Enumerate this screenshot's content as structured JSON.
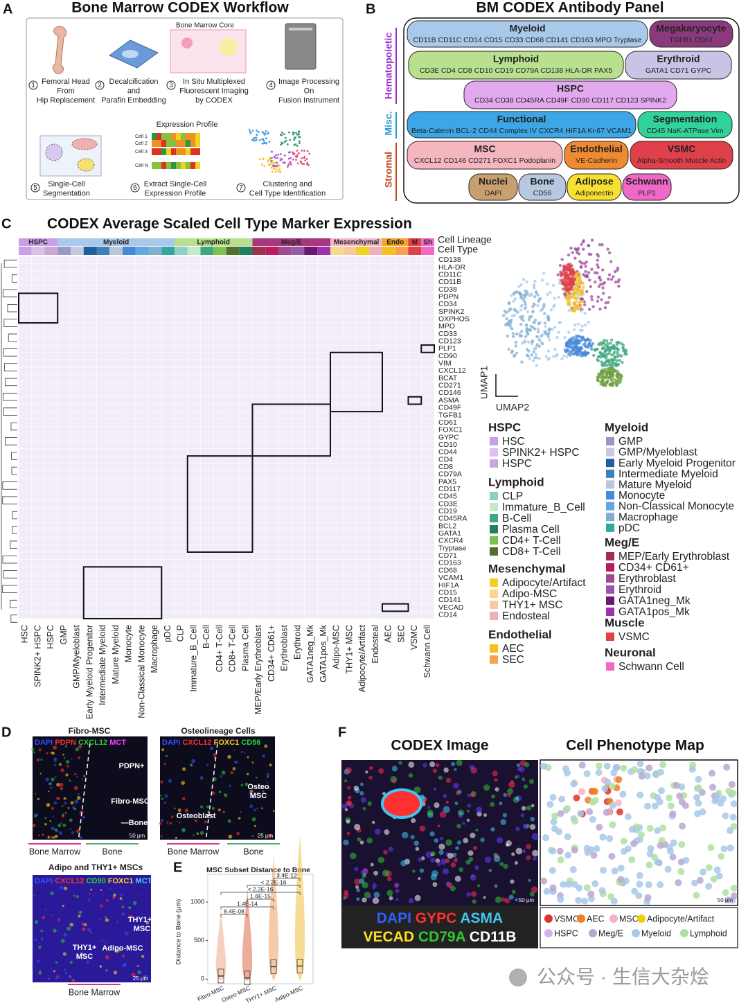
{
  "panel_a": {
    "letter": "A",
    "title": "Bone Marrow CODEX Workflow",
    "core_label": "Bone Marrow Core",
    "steps": [
      {
        "num": "1",
        "lines": [
          "Femoral Head",
          "From",
          "Hip Replacement"
        ]
      },
      {
        "num": "2",
        "lines": [
          "Decalcification",
          "and",
          "Parafin Embedding"
        ]
      },
      {
        "num": "3",
        "lines": [
          "In Situ Multiplexed",
          "Fluorescent Imaging",
          "by CODEX"
        ]
      },
      {
        "num": "4",
        "lines": [
          "Image Processing",
          "On",
          "Fusion Instrument"
        ]
      },
      {
        "num": "5",
        "lines": [
          "Single-Cell",
          "Segmentation"
        ]
      },
      {
        "num": "6",
        "lines": [
          "Extract Single-Cell",
          "Expression Profile"
        ]
      },
      {
        "num": "7",
        "lines": [
          "Clustering and",
          "Cell Type Identification"
        ]
      }
    ],
    "expression_profile": "Expression Profile",
    "cells": [
      "Cell 1",
      "Cell 2",
      "Cell 3",
      "Cell N"
    ]
  },
  "panel_b": {
    "letter": "B",
    "title": "BM CODEX Antibody Panel",
    "groups": [
      {
        "name": "Hematopoietic",
        "color": "#9b30c8"
      },
      {
        "name": "Misc.",
        "color": "#2a9ad8"
      },
      {
        "name": "Stromal",
        "color": "#c04a20"
      }
    ],
    "boxes": [
      {
        "name": "Myeloid",
        "markers": "CD11B CD11C CD14 CD15 CD33 CD68 CD141 CD163 MPO Tryptase",
        "color": "#a9c9ea"
      },
      {
        "name": "Megakaryocyte",
        "markers": "TGFB1 CD61",
        "color": "#8a3a7c"
      },
      {
        "name": "Lymphoid",
        "markers": "CD3E CD4 CD8 CD10 CD19 CD79A CD138 HLA-DR PAX5",
        "color": "#b8e08e"
      },
      {
        "name": "Erythroid",
        "markers": "GATA1 CD71 GYPC",
        "color": "#c9c3e6"
      },
      {
        "name": "HSPC",
        "markers": "CD34 CD38 CD45RA CD49F CD90 CD117 CD123 SPINK2",
        "color": "#e3a9ef"
      },
      {
        "name": "Functional",
        "markers": "Beta-Catenin BCL-2 CD44 Complex IV CXCR4 HIF1A Ki-67 VCAM1",
        "color": "#3da6e6"
      },
      {
        "name": "Segmentation",
        "markers": "CD45 NaK-ATPase Vim",
        "color": "#30d39a"
      },
      {
        "name": "MSC",
        "markers": "CXCL12 CD146 CD271 FOXC1 Podoplanin",
        "color": "#f6b6c0"
      },
      {
        "name": "Endothelial",
        "markers": "VE-Cadherin",
        "color": "#f08a30"
      },
      {
        "name": "VSMC",
        "markers": "Alpha-Smooth Muscle Actin",
        "color": "#e0404a"
      },
      {
        "name": "Nuclei",
        "markers": "DAPI",
        "color": "#c8a070"
      },
      {
        "name": "Bone",
        "markers": "CD56",
        "color": "#b8c8e0"
      },
      {
        "name": "Adipose",
        "markers": "Adiponectin",
        "color": "#f8e030"
      },
      {
        "name": "Schwann",
        "markers": "PLP1",
        "color": "#f068c8"
      }
    ]
  },
  "panel_c": {
    "letter": "C",
    "title": "CODEX Average Scaled Cell Type Marker Expression",
    "header_labels": [
      "Cell Lineage",
      "Cell Type"
    ],
    "lineages": [
      {
        "name": "HSPC",
        "color": "#c9a0e8"
      },
      {
        "name": "Myeloid",
        "color": "#a8c8ec"
      },
      {
        "name": "Lymphoid",
        "color": "#b8e08e"
      },
      {
        "name": "Meg/E",
        "color": "#a8387e"
      },
      {
        "name": "Mesenchymal",
        "color": "#f3b8c8"
      },
      {
        "name": "Endo",
        "color": "#f5a623"
      },
      {
        "name": "M",
        "color": "#e0404a"
      },
      {
        "name": "Sh",
        "color": "#f068c8"
      }
    ],
    "markers": [
      "CD138",
      "HLA-DR",
      "CD11C",
      "CD11B",
      "CD38",
      "PDPN",
      "CD34",
      "SPINK2",
      "OXPHOS",
      "MPO",
      "CD33",
      "CD123",
      "PLP1",
      "CD90",
      "VIM",
      "CXCL12",
      "BCAT",
      "CD271",
      "CD146",
      "ASMA",
      "CD49F",
      "TGFB1",
      "CD61",
      "FOXC1",
      "GYPC",
      "CD10",
      "CD44",
      "CD4",
      "CD8",
      "CD79A",
      "PAX5",
      "CD117",
      "CD45",
      "CD3E",
      "CD19",
      "CD45RA",
      "BCL2",
      "GATA1",
      "CXCR4",
      "Tryptase",
      "CD71",
      "CD163",
      "CD68",
      "VCAM1",
      "HIF1A",
      "CD15",
      "CD141",
      "VECAD",
      "CD14"
    ],
    "cell_types": [
      "HSC",
      "SPINK2+ HSPC",
      "HSPC",
      "GMP",
      "GMP/Myeloblast",
      "Early Myeloid Progenitor",
      "Intermediate Myeloid",
      "Mature Myeloid",
      "Monocyte",
      "Non-Classical Monocyte",
      "Macrophage",
      "pDC",
      "CLP",
      "Immature_B_Cell",
      "B-Cell",
      "CD4+ T-Cell",
      "CD8+ T-Cell",
      "Plasma Cell",
      "MEP/Early Erythroblast",
      "CD34+ CD61+",
      "Erythroblast",
      "Erythroid",
      "GATA1neg_Mk",
      "GATA1pos_Mk",
      "Adipo-MSC",
      "THY1+ MSC",
      "Adipocyte/Artifact",
      "Endosteal",
      "AEC",
      "SEC",
      "VSMC",
      "Schwann Cell"
    ],
    "umap_axes": [
      "UMAP1",
      "UMAP2"
    ],
    "legend": [
      {
        "title": "HSPC",
        "items": [
          {
            "name": "HSC",
            "color": "#c9a0e8"
          },
          {
            "name": "SPINK2+ HSPC",
            "color": "#dcc0ec"
          },
          {
            "name": "HSPC",
            "color": "#c8a8d8"
          }
        ]
      },
      {
        "title": "Myeloid",
        "items": [
          {
            "name": "GMP",
            "color": "#9898c8"
          },
          {
            "name": "GMP/Myeloblast",
            "color": "#c8c8e0"
          },
          {
            "name": "Early Myeloid Progenitor",
            "color": "#2060a0"
          },
          {
            "name": "Intermediate Myeloid",
            "color": "#4080b8"
          },
          {
            "name": "Mature Myeloid",
            "color": "#b8c8d8"
          },
          {
            "name": "Monocyte",
            "color": "#4888d8"
          },
          {
            "name": "Non-Classical Monocyte",
            "color": "#60a8e0"
          },
          {
            "name": "Macrophage",
            "color": "#80b0d0"
          },
          {
            "name": "pDC",
            "color": "#30a8a0"
          }
        ]
      },
      {
        "title": "Lymphoid",
        "items": [
          {
            "name": "CLP",
            "color": "#8ed0c8"
          },
          {
            "name": "Immature_B_Cell",
            "color": "#c8e8c8"
          },
          {
            "name": "B-Cell",
            "color": "#40a880"
          },
          {
            "name": "Plasma Cell",
            "color": "#208060"
          },
          {
            "name": "CD4+ T-Cell",
            "color": "#80c050"
          },
          {
            "name": "CD8+ T-Cell",
            "color": "#507030"
          }
        ]
      },
      {
        "title": "Meg/E",
        "items": [
          {
            "name": "MEP/Early Erythroblast",
            "color": "#a03050"
          },
          {
            "name": "CD34+ CD61+",
            "color": "#c01860"
          },
          {
            "name": "Erythroblast",
            "color": "#a04890"
          },
          {
            "name": "Erythroid",
            "color": "#9858a8"
          },
          {
            "name": "GATA1neg_Mk",
            "color": "#6a1870"
          },
          {
            "name": "GATA1pos_Mk",
            "color": "#a030b0"
          }
        ]
      },
      {
        "title": "Mesenchymal",
        "items": [
          {
            "name": "Adipocyte/Artifact",
            "color": "#f5d020"
          },
          {
            "name": "Adipo-MSC",
            "color": "#f8d890"
          },
          {
            "name": "THY1+ MSC",
            "color": "#f8c8a0"
          },
          {
            "name": "Endosteal",
            "color": "#f0b0b8"
          }
        ]
      },
      {
        "title": "Endothelial",
        "items": [
          {
            "name": "AEC",
            "color": "#f5c020"
          },
          {
            "name": "SEC",
            "color": "#f8a050"
          }
        ]
      },
      {
        "title": "Muscle",
        "items": [
          {
            "name": "VSMC",
            "color": "#e0404a"
          }
        ]
      },
      {
        "title": "Neuronal",
        "items": [
          {
            "name": "Schwann Cell",
            "color": "#f068c8"
          }
        ]
      }
    ]
  },
  "panel_d": {
    "letter": "D",
    "images": [
      {
        "title": "Fibro-MSC",
        "channels": [
          {
            "name": "DAPI",
            "color": "#3050ff"
          },
          {
            "name": "PDPN",
            "color": "#ff3030"
          },
          {
            "name": "CXCL12",
            "color": "#30d030"
          },
          {
            "name": "MCT",
            "color": "#ff40ff"
          }
        ],
        "annotations": [
          "PDPN+",
          "Fibro-MSC",
          "—Bone",
          "50 µm"
        ],
        "below": [
          "Bone Marrow",
          "Bone"
        ]
      },
      {
        "title": "Osteolineage Cells",
        "channels": [
          {
            "name": "DAPI",
            "color": "#3050ff"
          },
          {
            "name": "CXCL12",
            "color": "#ff3030"
          },
          {
            "name": "FOXC1",
            "color": "#ffd020"
          },
          {
            "name": "CD56",
            "color": "#30d030"
          }
        ],
        "annotations": [
          "Osteo",
          "MSC",
          "Osteoblast",
          "25 µm"
        ],
        "below": [
          "Bone Marrow",
          "Bone"
        ]
      },
      {
        "title": "Adipo and THY1+ MSCs",
        "channels": [
          {
            "name": "DAPI",
            "color": "#3050ff"
          },
          {
            "name": "CXCL12",
            "color": "#ff3030"
          },
          {
            "name": "CD90",
            "color": "#30d030"
          },
          {
            "name": "FOXC1",
            "color": "#ffd020"
          },
          {
            "name": "MCT",
            "color": "#40d0ff"
          }
        ],
        "annotations": [
          "THY1+",
          "MSC",
          "THY1+",
          "MSC",
          "Adipo-MSC",
          "25 µm"
        ],
        "below": [
          "Bone Marrow"
        ]
      }
    ]
  },
  "chart_data": {
    "type": "box",
    "letter": "E",
    "title": "MSC Subset Distance to Bone",
    "y_label": "Distance to Bone (µm)",
    "categories": [
      "Fibro-MSC",
      "Osteo-MSC",
      "THY1+ MSC",
      "Adipo-MSC"
    ],
    "values": [
      40,
      15,
      160,
      170
    ],
    "colors": [
      "#f0a888",
      "#e06848",
      "#f0a060",
      "#f0c040"
    ],
    "ylim": [
      -60,
      1360
    ],
    "yticks": [
      0,
      500,
      1000
    ],
    "p_values": [
      "8.4E-08",
      "1.4E-14",
      "1.6E-15",
      "< 2.2E-16",
      "< 2.2E-16",
      "3.4E-12"
    ]
  },
  "panel_f": {
    "letter": "F",
    "titles": [
      "CODEX Image",
      "Cell Phenotype Map"
    ],
    "scale": [
      "50 µm",
      "50 µm"
    ],
    "channel_rows": [
      [
        {
          "name": "DAPI",
          "color": "#3060ff"
        },
        {
          "name": "GYPC",
          "color": "#ff3030"
        },
        {
          "name": "ASMA",
          "color": "#40c8f0"
        }
      ],
      [
        {
          "name": "VECAD",
          "color": "#ffe020"
        },
        {
          "name": "CD79A",
          "color": "#30c830"
        },
        {
          "name": "CD11B",
          "color": "#ffffff"
        }
      ]
    ],
    "legend": [
      {
        "name": "VSMC",
        "color": "#e03030"
      },
      {
        "name": "AEC",
        "color": "#f08020"
      },
      {
        "name": "MSC",
        "color": "#f8b0c0"
      },
      {
        "name": "Adipocyte/Artifact",
        "color": "#f0d000"
      },
      {
        "name": "HSPC",
        "color": "#d8b0f0"
      },
      {
        "name": "Meg/E",
        "color": "#b8a8d0"
      },
      {
        "name": "Myeloid",
        "color": "#a8c8e8"
      },
      {
        "name": "Lymphoid",
        "color": "#b0e0a0"
      }
    ]
  },
  "watermark": "公众号 · 生信大杂烩"
}
